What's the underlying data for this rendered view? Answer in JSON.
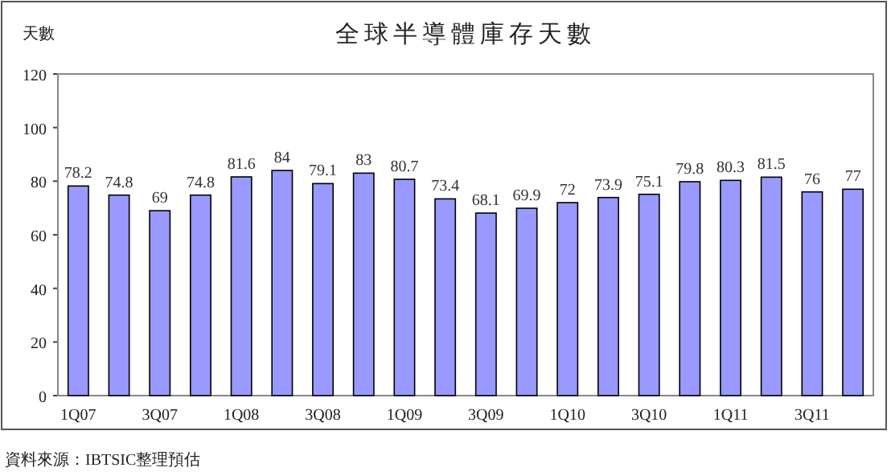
{
  "chart_data": {
    "type": "bar",
    "title": "全球半導體庫存天數",
    "ylabel": "天數",
    "categories": [
      "1Q07",
      null,
      "3Q07",
      null,
      "1Q08",
      null,
      "3Q08",
      null,
      "1Q09",
      null,
      "3Q09",
      null,
      "1Q10",
      null,
      "3Q10",
      null,
      "1Q11",
      null,
      "3Q11",
      null
    ],
    "values": [
      78.2,
      74.8,
      69,
      74.8,
      81.6,
      84,
      79.1,
      83,
      80.7,
      73.4,
      68.1,
      69.9,
      72,
      73.9,
      75.1,
      79.8,
      80.3,
      81.5,
      76,
      77
    ],
    "color": "#9999ff",
    "ylim": [
      0,
      120
    ],
    "yticks": [
      0,
      20,
      40,
      60,
      80,
      100,
      120
    ],
    "grid": false,
    "data_labels": true,
    "annotations": [
      "資料來源：IBTSIC整理預估"
    ]
  }
}
